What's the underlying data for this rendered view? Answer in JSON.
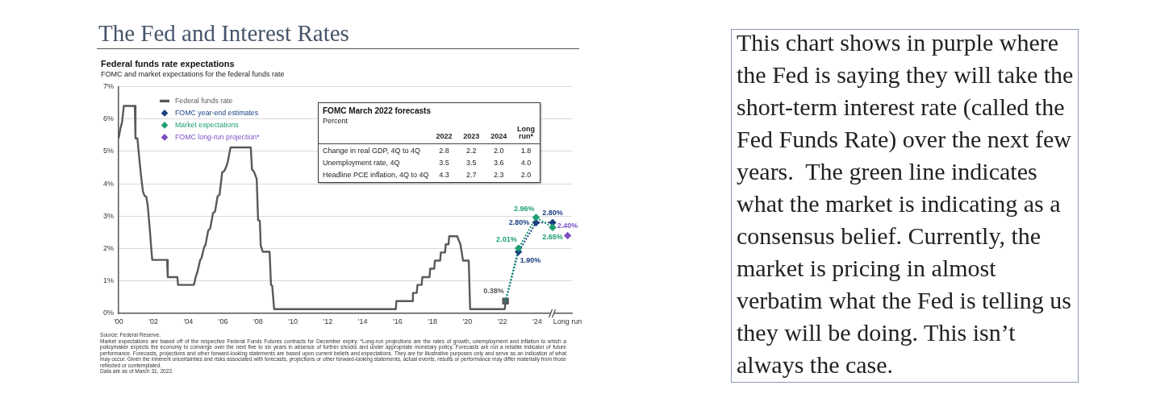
{
  "chart_data": [
    {
      "type": "other",
      "title": "The Fed and Interest Rates"
    },
    {
      "type": "line",
      "title": "Federal funds rate expectations",
      "subtitle": "FOMC and market expectations for the federal funds rate",
      "xlim": [
        2000,
        2026
      ],
      "xticks": [
        {
          "value": 2000,
          "label": "'00"
        },
        {
          "value": 2002,
          "label": "'02"
        },
        {
          "value": 2004,
          "label": "'04"
        },
        {
          "value": 2006,
          "label": "'06"
        },
        {
          "value": 2008,
          "label": "'08"
        },
        {
          "value": 2010,
          "label": "'10"
        },
        {
          "value": 2012,
          "label": "'12"
        },
        {
          "value": 2014,
          "label": "'14"
        },
        {
          "value": 2016,
          "label": "'16"
        },
        {
          "value": 2018,
          "label": "'18"
        },
        {
          "value": 2020,
          "label": "'20"
        },
        {
          "value": 2022,
          "label": "'22"
        },
        {
          "value": 2024,
          "label": "'24"
        },
        {
          "value": 2025.75,
          "label": "Long run"
        }
      ],
      "ylim": [
        0,
        7
      ],
      "yticks": [
        {
          "value": 0,
          "label": "0%"
        },
        {
          "value": 1,
          "label": "1%"
        },
        {
          "value": 2,
          "label": "2%"
        },
        {
          "value": 3,
          "label": "3%"
        },
        {
          "value": 4,
          "label": "4%"
        },
        {
          "value": 5,
          "label": "5%"
        },
        {
          "value": 6,
          "label": "6%"
        },
        {
          "value": 7,
          "label": "7%"
        }
      ],
      "grid": "y",
      "legend": "top left",
      "series": [
        {
          "name": "Federal funds rate",
          "type": "line",
          "marker": "none",
          "line_style": "solid",
          "color": "#595959",
          "x": [
            2000.0,
            2000.1,
            2000.2,
            2000.3,
            2000.93,
            2000.97,
            2001.08,
            2001.2,
            2001.33,
            2001.4,
            2001.5,
            2001.59,
            2001.67,
            2001.79,
            2001.87,
            2001.93,
            2002.78,
            2002.82,
            2003.37,
            2003.41,
            2004.32,
            2004.42,
            2004.52,
            2004.68,
            2004.75,
            2004.91,
            2004.98,
            2005.14,
            2005.25,
            2005.42,
            2005.53,
            2005.68,
            2005.79,
            2005.94,
            2006.07,
            2006.19,
            2006.25,
            2006.42,
            2007.58,
            2007.65,
            2007.76,
            2007.92,
            2008.0,
            2008.1,
            2008.15,
            2008.27,
            2008.66,
            2008.74,
            2008.81,
            2008.92,
            2015.9,
            2015.93,
            2016.84,
            2016.88,
            2017.1,
            2017.14,
            2017.38,
            2017.42,
            2017.83,
            2017.87,
            2018.1,
            2018.14,
            2018.44,
            2018.48,
            2018.72,
            2018.76,
            2018.92,
            2018.96,
            2019.42,
            2019.6,
            2019.68,
            2019.75,
            2020.08,
            2020.16,
            2022.15,
            2022.19
          ],
          "values": [
            5.4,
            5.7,
            5.9,
            6.4,
            6.4,
            5.4,
            5.4,
            4.7,
            4.05,
            3.75,
            3.62,
            3.6,
            3.33,
            2.6,
            2.02,
            1.65,
            1.65,
            1.12,
            1.12,
            0.88,
            0.88,
            1.12,
            1.28,
            1.65,
            1.7,
            2.05,
            2.1,
            2.56,
            2.62,
            3.1,
            3.14,
            3.62,
            3.66,
            4.35,
            4.4,
            4.55,
            4.65,
            5.12,
            5.12,
            4.44,
            4.38,
            4.15,
            2.88,
            2.85,
            2.1,
            1.9,
            1.9,
            0.88,
            0.85,
            0.13,
            0.13,
            0.38,
            0.38,
            0.63,
            0.63,
            0.88,
            0.88,
            1.12,
            1.12,
            1.38,
            1.38,
            1.63,
            1.63,
            1.88,
            1.88,
            2.13,
            2.13,
            2.38,
            2.38,
            2.13,
            1.88,
            1.63,
            1.63,
            0.13,
            0.13,
            0.38
          ]
        },
        {
          "type": "scatter",
          "marker": "square",
          "color": "#595959",
          "x": [
            2022.19
          ],
          "values": [
            0.38
          ],
          "value_labels": [
            "0.38%"
          ]
        },
        {
          "type": "line",
          "marker": "none",
          "line_style": "dotted",
          "color": "#1b3f80",
          "x": [
            2022.19,
            2022.93,
            2023.94,
            2024.89
          ],
          "values": [
            0.38,
            1.9,
            2.8,
            2.8
          ]
        },
        {
          "type": "line",
          "marker": "none",
          "line_style": "dotted",
          "color": "#1c9e74",
          "x": [
            2022.19,
            2022.93,
            2023.94,
            2024.89
          ],
          "values": [
            0.38,
            2.01,
            2.96,
            2.65
          ]
        },
        {
          "name": "FOMC year-end estimates",
          "type": "scatter",
          "marker": "diamond",
          "color": "#1b3f80",
          "x": [
            2022.93,
            2023.94,
            2024.89
          ],
          "values": [
            1.9,
            2.8,
            2.8
          ],
          "value_labels": [
            "1.90%",
            "2.80%",
            "2.80%"
          ]
        },
        {
          "name": "Market expectations",
          "type": "scatter",
          "marker": "diamond",
          "color": "#1c9e74",
          "x": [
            2022.93,
            2023.94,
            2024.89
          ],
          "values": [
            2.01,
            2.96,
            2.65
          ],
          "value_labels": [
            "2.01%",
            "2.96%",
            "2.65%"
          ]
        },
        {
          "name": "FOMC long-run projection*",
          "type": "scatter",
          "marker": "diamond",
          "color": "#7b4fc4",
          "x": [
            2025.75
          ],
          "values": [
            2.4
          ],
          "value_labels": [
            "2.40%"
          ]
        }
      ],
      "annotations": [
        "Source: Federal Reserve.",
        "Market expectations are based off of the respective Federal Funds Futures contracts for December expiry. *Long-run projections are the rates of growth, unemployment and inflation to which a policymaker expects the economy to converge over the next five to six years in absence of further shocks and under appropriate monetary policy. Forecasts are not a reliable indicator of future performance. Forecasts, projections and other forward-looking statements are based upon current beliefs and expectations. They are for illustrative purposes only and serve as an indication of what may occur. Given the inherent uncertainties and risks associated with forecasts, projections or other forward-looking statements, actual events, results or performance may differ materially from those reflected or contemplated.",
        "Data are as of March 31, 2022."
      ]
    },
    {
      "type": "other",
      "title": "FOMC March 2022 forecasts",
      "subtitle": "Percent",
      "categories": [
        "2022",
        "2023",
        "2024",
        "Long run*"
      ],
      "y_categories": [
        "Change in real GDP, 4Q to 4Q",
        "Unemployment rate, 4Q",
        "Headline PCE inflation, 4Q to 4Q"
      ],
      "cell_labels": [
        [
          "2.8",
          "2.2",
          "2.0",
          "1.8"
        ],
        [
          "3.5",
          "3.5",
          "3.6",
          "4.0"
        ],
        [
          "4.3",
          "2.7",
          "2.3",
          "2.0"
        ]
      ]
    },
    {
      "type": "other",
      "annotations": [
        "This chart shows in purple where the Fed is saying they will take the short-term interest rate (called the Fed Funds Rate) over the next few years.  The green line indicates what the market is indicating as a consensus belief. Currently, the market is pricing in almost verbatim what the Fed is telling us they will be doing. This isn’t always the case."
      ]
    }
  ]
}
